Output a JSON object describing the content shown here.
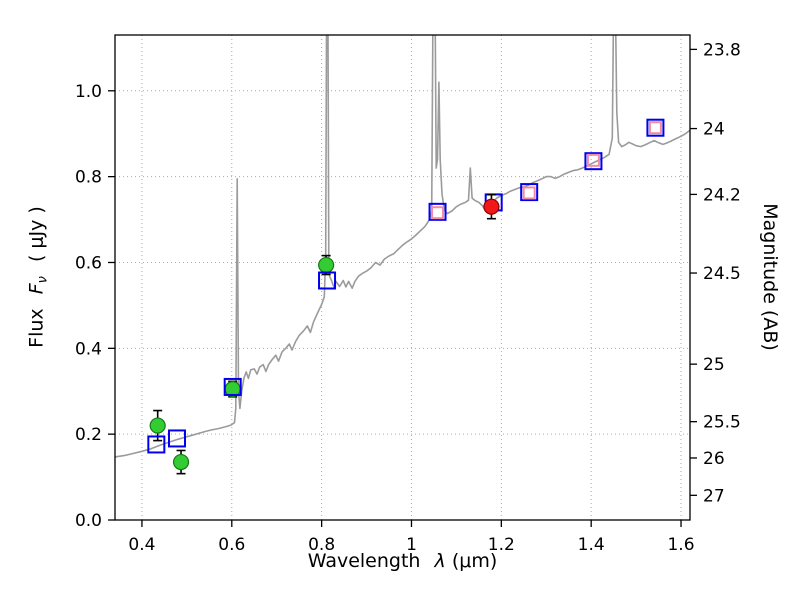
{
  "chart_data": {
    "type": "line",
    "title": "",
    "xlabel_word": "Wavelength",
    "xlabel_symbol": "λ",
    "xlabel_unit": "(μm)",
    "ylabel_word": "Flux",
    "ylabel_symbol": "F",
    "ylabel_sub": "ν",
    "ylabel_unit": "( μJy )",
    "ylabel_right": "Magnitude (AB)",
    "xlim": [
      0.34,
      1.62
    ],
    "ylim": [
      0,
      1.13
    ],
    "grid": "dotted",
    "x_ticks": [
      {
        "value": 0.4,
        "label": "0.4"
      },
      {
        "value": 0.6,
        "label": "0.6"
      },
      {
        "value": 0.8,
        "label": "0.8"
      },
      {
        "value": 1.0,
        "label": "1"
      },
      {
        "value": 1.2,
        "label": "1.2"
      },
      {
        "value": 1.4,
        "label": "1.4"
      },
      {
        "value": 1.6,
        "label": "1.6"
      }
    ],
    "y_ticks_left": [
      {
        "value": 0.0,
        "label": "0.0"
      },
      {
        "value": 0.2,
        "label": "0.2"
      },
      {
        "value": 0.4,
        "label": "0.4"
      },
      {
        "value": 0.6,
        "label": "0.6"
      },
      {
        "value": 0.8,
        "label": "0.8"
      },
      {
        "value": 1.0,
        "label": "1.0"
      }
    ],
    "y_ticks_right": [
      {
        "flux": 1.0965,
        "label": "23.8"
      },
      {
        "flux": 0.912,
        "label": "24"
      },
      {
        "flux": 0.7586,
        "label": "24.2"
      },
      {
        "flux": 0.5754,
        "label": "24.5"
      },
      {
        "flux": 0.3631,
        "label": "25"
      },
      {
        "flux": 0.2291,
        "label": "25.5"
      },
      {
        "flux": 0.1445,
        "label": "26"
      },
      {
        "flux": 0.0575,
        "label": "27"
      }
    ],
    "spectrum": {
      "name": "model-spectrum",
      "color": "#9b9b9b",
      "points": [
        [
          0.34,
          0.147
        ],
        [
          0.36,
          0.15
        ],
        [
          0.38,
          0.155
        ],
        [
          0.4,
          0.16
        ],
        [
          0.42,
          0.166
        ],
        [
          0.44,
          0.174
        ],
        [
          0.46,
          0.181
        ],
        [
          0.48,
          0.188
        ],
        [
          0.5,
          0.194
        ],
        [
          0.52,
          0.2
        ],
        [
          0.54,
          0.206
        ],
        [
          0.555,
          0.21
        ],
        [
          0.57,
          0.213
        ],
        [
          0.585,
          0.217
        ],
        [
          0.598,
          0.221
        ],
        [
          0.606,
          0.227
        ],
        [
          0.609,
          0.26
        ],
        [
          0.612,
          0.795
        ],
        [
          0.615,
          0.3
        ],
        [
          0.618,
          0.26
        ],
        [
          0.622,
          0.3
        ],
        [
          0.627,
          0.33
        ],
        [
          0.632,
          0.345
        ],
        [
          0.637,
          0.33
        ],
        [
          0.642,
          0.35
        ],
        [
          0.65,
          0.352
        ],
        [
          0.656,
          0.34
        ],
        [
          0.662,
          0.356
        ],
        [
          0.67,
          0.362
        ],
        [
          0.676,
          0.346
        ],
        [
          0.682,
          0.362
        ],
        [
          0.69,
          0.374
        ],
        [
          0.698,
          0.384
        ],
        [
          0.704,
          0.37
        ],
        [
          0.712,
          0.392
        ],
        [
          0.72,
          0.4
        ],
        [
          0.728,
          0.41
        ],
        [
          0.734,
          0.396
        ],
        [
          0.742,
          0.416
        ],
        [
          0.75,
          0.43
        ],
        [
          0.76,
          0.441
        ],
        [
          0.768,
          0.452
        ],
        [
          0.775,
          0.437
        ],
        [
          0.782,
          0.462
        ],
        [
          0.79,
          0.48
        ],
        [
          0.8,
          0.502
        ],
        [
          0.806,
          0.52
        ],
        [
          0.809,
          0.62
        ],
        [
          0.811,
          1.2
        ],
        [
          0.8125,
          1.25
        ],
        [
          0.814,
          1.2
        ],
        [
          0.816,
          0.6
        ],
        [
          0.818,
          0.567
        ],
        [
          0.822,
          0.558
        ],
        [
          0.827,
          0.543
        ],
        [
          0.832,
          0.556
        ],
        [
          0.84,
          0.544
        ],
        [
          0.848,
          0.558
        ],
        [
          0.854,
          0.543
        ],
        [
          0.86,
          0.556
        ],
        [
          0.868,
          0.54
        ],
        [
          0.874,
          0.556
        ],
        [
          0.882,
          0.568
        ],
        [
          0.89,
          0.574
        ],
        [
          0.9,
          0.58
        ],
        [
          0.91,
          0.588
        ],
        [
          0.92,
          0.6
        ],
        [
          0.93,
          0.594
        ],
        [
          0.94,
          0.608
        ],
        [
          0.95,
          0.615
        ],
        [
          0.96,
          0.62
        ],
        [
          0.97,
          0.63
        ],
        [
          0.98,
          0.64
        ],
        [
          0.99,
          0.648
        ],
        [
          1.0,
          0.655
        ],
        [
          1.01,
          0.664
        ],
        [
          1.02,
          0.674
        ],
        [
          1.03,
          0.684
        ],
        [
          1.04,
          0.7
        ],
        [
          1.045,
          0.72
        ],
        [
          1.048,
          1.2
        ],
        [
          1.05,
          1.25
        ],
        [
          1.0525,
          1.2
        ],
        [
          1.055,
          0.82
        ],
        [
          1.058,
          0.84
        ],
        [
          1.061,
          1.02
        ],
        [
          1.064,
          0.84
        ],
        [
          1.068,
          0.76
        ],
        [
          1.073,
          0.722
        ],
        [
          1.08,
          0.714
        ],
        [
          1.09,
          0.72
        ],
        [
          1.1,
          0.73
        ],
        [
          1.11,
          0.736
        ],
        [
          1.12,
          0.74
        ],
        [
          1.127,
          0.745
        ],
        [
          1.131,
          0.82
        ],
        [
          1.135,
          0.75
        ],
        [
          1.142,
          0.744
        ],
        [
          1.15,
          0.74
        ],
        [
          1.158,
          0.732
        ],
        [
          1.165,
          0.72
        ],
        [
          1.172,
          0.73
        ],
        [
          1.18,
          0.74
        ],
        [
          1.19,
          0.75
        ],
        [
          1.2,
          0.756
        ],
        [
          1.21,
          0.76
        ],
        [
          1.22,
          0.766
        ],
        [
          1.23,
          0.77
        ],
        [
          1.24,
          0.774
        ],
        [
          1.25,
          0.776
        ],
        [
          1.26,
          0.78
        ],
        [
          1.27,
          0.786
        ],
        [
          1.28,
          0.79
        ],
        [
          1.29,
          0.795
        ],
        [
          1.3,
          0.8
        ],
        [
          1.31,
          0.8
        ],
        [
          1.32,
          0.796
        ],
        [
          1.33,
          0.8
        ],
        [
          1.34,
          0.806
        ],
        [
          1.35,
          0.81
        ],
        [
          1.36,
          0.814
        ],
        [
          1.37,
          0.816
        ],
        [
          1.38,
          0.82
        ],
        [
          1.39,
          0.825
        ],
        [
          1.4,
          0.83
        ],
        [
          1.41,
          0.835
        ],
        [
          1.42,
          0.84
        ],
        [
          1.43,
          0.845
        ],
        [
          1.44,
          0.852
        ],
        [
          1.447,
          0.89
        ],
        [
          1.45,
          1.2
        ],
        [
          1.452,
          1.25
        ],
        [
          1.454,
          1.2
        ],
        [
          1.457,
          0.95
        ],
        [
          1.461,
          0.88
        ],
        [
          1.468,
          0.87
        ],
        [
          1.476,
          0.874
        ],
        [
          1.484,
          0.88
        ],
        [
          1.492,
          0.876
        ],
        [
          1.5,
          0.872
        ],
        [
          1.51,
          0.87
        ],
        [
          1.52,
          0.874
        ],
        [
          1.53,
          0.879
        ],
        [
          1.54,
          0.884
        ],
        [
          1.55,
          0.879
        ],
        [
          1.56,
          0.875
        ],
        [
          1.57,
          0.879
        ],
        [
          1.58,
          0.884
        ],
        [
          1.59,
          0.889
        ],
        [
          1.6,
          0.894
        ],
        [
          1.61,
          0.9
        ],
        [
          1.62,
          0.908
        ]
      ]
    },
    "series": [
      {
        "name": "observed-photometry-green",
        "marker": "circle",
        "fill": "#33cc33",
        "edge": "#157815",
        "size": 7.5,
        "points": [
          {
            "x": 0.435,
            "y": 0.22,
            "yerr": 0.035
          },
          {
            "x": 0.487,
            "y": 0.135,
            "yerr": 0.027
          },
          {
            "x": 0.602,
            "y": 0.305,
            "yerr": 0.018
          },
          {
            "x": 0.81,
            "y": 0.594,
            "yerr": 0.022
          }
        ]
      },
      {
        "name": "model-photometry-blue-squares",
        "marker": "square",
        "fill": "none",
        "edge": "#0000ee",
        "size": 16,
        "points": [
          {
            "x": 0.432,
            "y": 0.176
          },
          {
            "x": 0.478,
            "y": 0.19
          },
          {
            "x": 0.602,
            "y": 0.31
          },
          {
            "x": 0.812,
            "y": 0.558
          },
          {
            "x": 1.058,
            "y": 0.718
          },
          {
            "x": 1.183,
            "y": 0.74
          },
          {
            "x": 1.262,
            "y": 0.764
          },
          {
            "x": 1.405,
            "y": 0.836
          },
          {
            "x": 1.543,
            "y": 0.914
          }
        ]
      },
      {
        "name": "photometry-pink-squares",
        "marker": "square",
        "fill": "none",
        "edge": "#f48aa6",
        "size": 11,
        "points": [
          {
            "x": 1.058,
            "y": 0.716
          },
          {
            "x": 1.262,
            "y": 0.762
          },
          {
            "x": 1.405,
            "y": 0.838
          },
          {
            "x": 1.543,
            "y": 0.914
          }
        ]
      },
      {
        "name": "observed-photometry-red",
        "marker": "circle",
        "fill": "#f01818",
        "edge": "#8c0000",
        "size": 7.5,
        "points": [
          {
            "x": 1.178,
            "y": 0.73,
            "yerr": 0.028
          }
        ]
      }
    ]
  }
}
